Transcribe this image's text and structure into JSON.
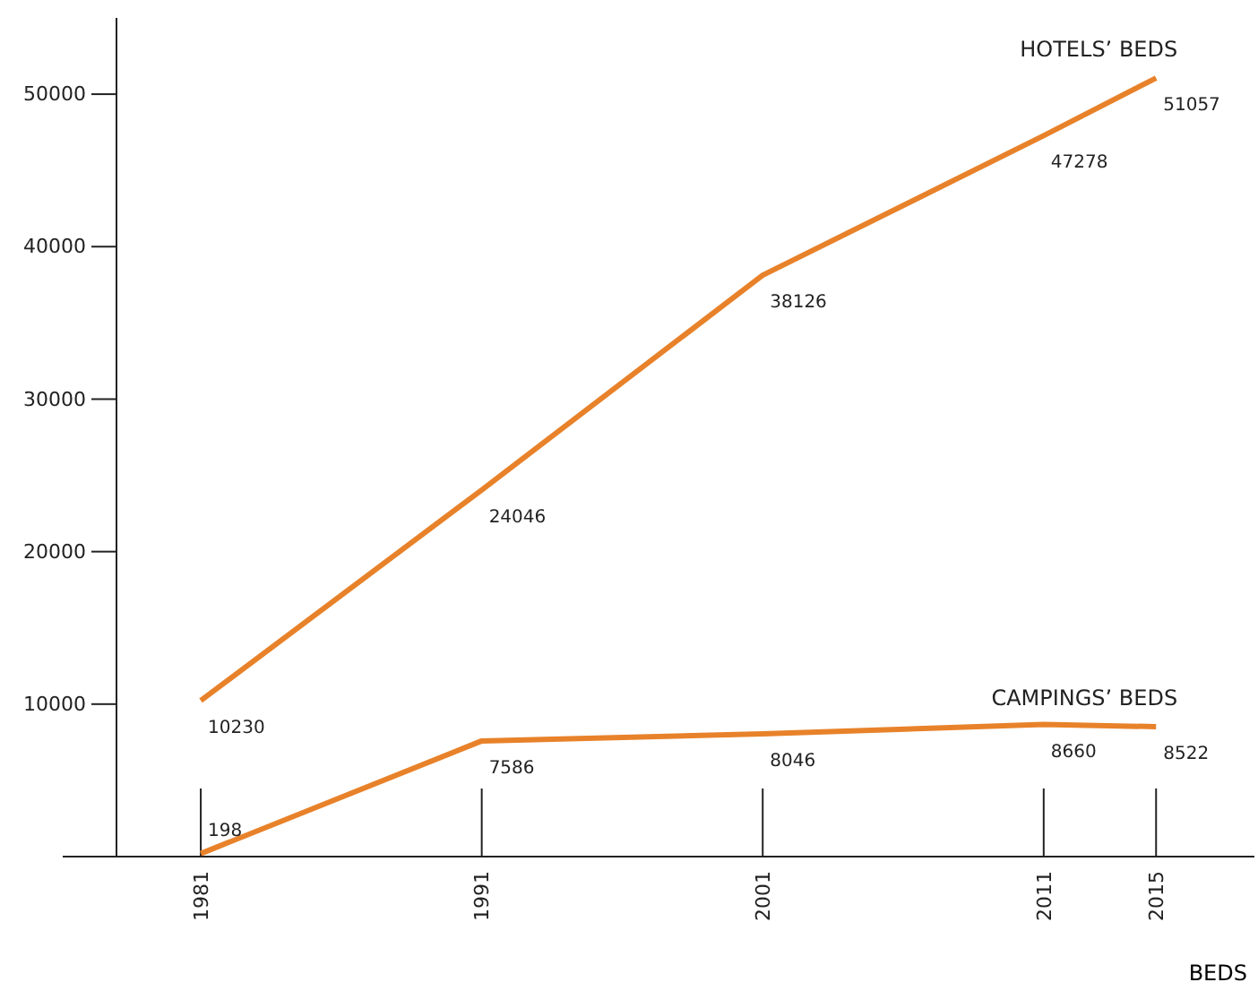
{
  "chart_data": {
    "type": "line",
    "xlabel": "BEDS",
    "x": [
      1981,
      1991,
      2001,
      2011,
      2015
    ],
    "xlim": [
      1978,
      2018.5
    ],
    "xticks": [
      1981,
      1991,
      2001,
      2011,
      2015
    ],
    "ylim": [
      0,
      55000
    ],
    "yticks": [
      10000,
      20000,
      30000,
      40000,
      50000
    ],
    "series": [
      {
        "name": "HOTELS’ BEDS",
        "color": "#e8822a",
        "values": [
          10230,
          24046,
          38126,
          47278,
          51057
        ]
      },
      {
        "name": "CAMPINGS’ BEDS",
        "color": "#e8822a",
        "values": [
          198,
          7586,
          8046,
          8660,
          8522
        ]
      }
    ],
    "data_labels": true,
    "grid": false,
    "legend": false,
    "marker": "none",
    "line_style": "solid"
  }
}
